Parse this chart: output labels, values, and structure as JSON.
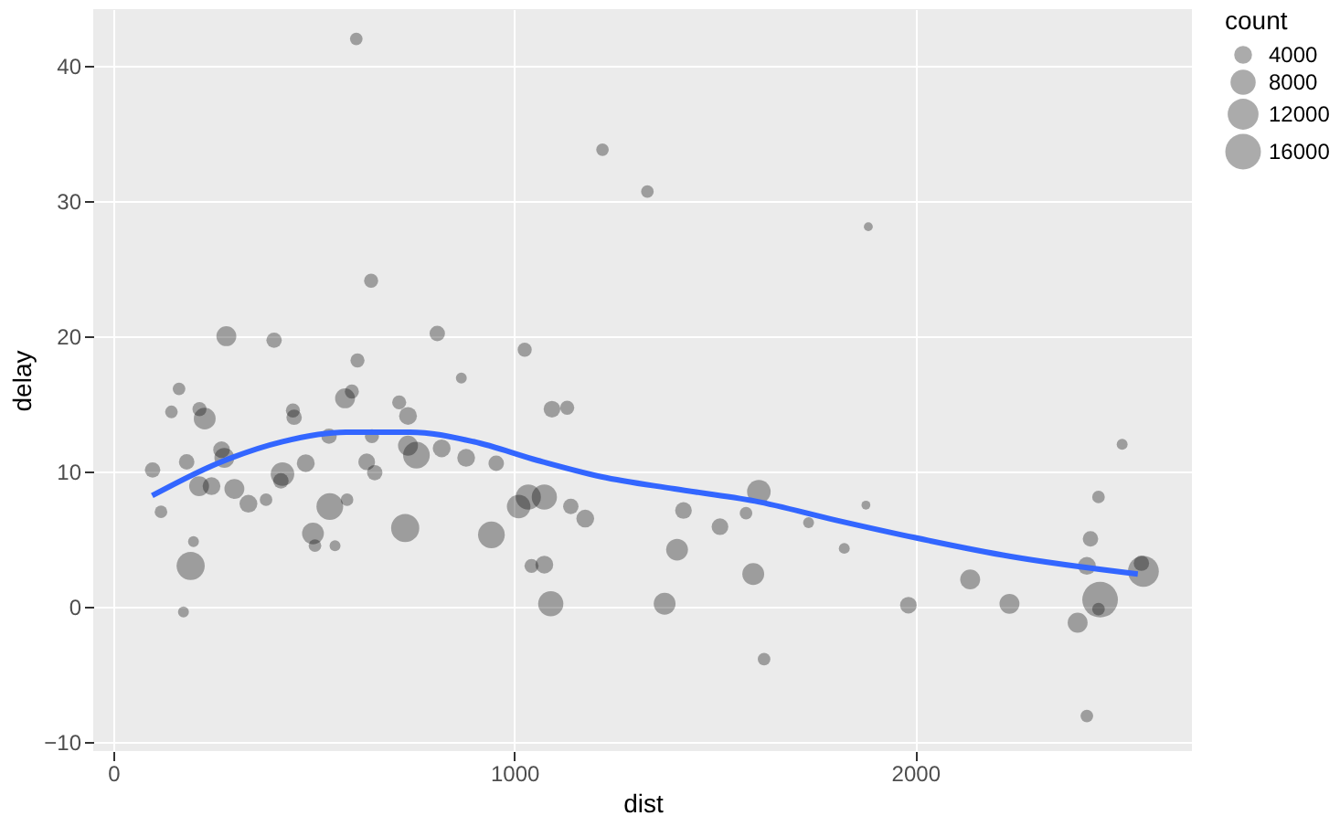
{
  "chart_data": {
    "type": "bubble",
    "xlabel": "dist",
    "ylabel": "delay",
    "legend_title": "count",
    "grid": true,
    "xlim": [
      -50,
      2690
    ],
    "ylim": [
      -10.7,
      44.2
    ],
    "xticks": [
      0,
      1000,
      2000
    ],
    "yticks": [
      -10,
      0,
      10,
      20,
      30,
      40
    ],
    "size_legend": [
      4000,
      8000,
      12000,
      16000
    ],
    "series": [
      {
        "color": "#000000",
        "x": [
          606,
          1220,
          1332,
          643,
          282,
          401,
          808,
          1026,
          609,
          1883,
          164,
          868,
          145,
          215,
          228,
          448,
          451,
          578,
          595,
          713,
          735,
          1094,
          1132,
          98,
          183,
          270,
          277,
          214,
          245,
          302,
          422,
          418,
          480,
          538,
          645,
          632,
          652,
          735,
          756,
          819,
          880,
          955,
          119,
          337,
          381,
          583,
          540,
          498,
          503,
          553,
          728,
          943,
          1011,
          1035,
          1075,
          1141,
          1177,
          200,
          193,
          175,
          1043,
          1075,
          1091,
          1375,
          2516,
          1610,
          1578,
          1422,
          1513,
          1734,
          1877,
          1823,
          1406,
          1596,
          1983,
          2137,
          2235,
          2457,
          2437,
          2428,
          2461,
          2457,
          2405,
          2569,
          2564,
          1623,
          2428
        ],
        "values": [
          42.0,
          33.8,
          30.7,
          24.1,
          20.0,
          19.7,
          20.2,
          19.0,
          18.2,
          28.1,
          16.1,
          16.9,
          14.4,
          14.6,
          13.9,
          14.5,
          14.0,
          15.4,
          15.9,
          15.1,
          14.1,
          14.6,
          14.7,
          10.1,
          10.7,
          11.6,
          11.0,
          8.9,
          8.9,
          8.7,
          9.8,
          9.3,
          10.6,
          12.6,
          12.6,
          10.7,
          9.9,
          11.9,
          11.2,
          11.7,
          11.0,
          10.6,
          7.0,
          7.6,
          7.9,
          7.9,
          7.4,
          5.4,
          4.5,
          4.5,
          5.8,
          5.3,
          7.4,
          8.1,
          8.1,
          7.4,
          6.5,
          4.8,
          3.0,
          -0.4,
          3.0,
          3.1,
          0.2,
          0.2,
          12.0,
          8.5,
          6.9,
          7.1,
          5.9,
          6.2,
          7.5,
          4.3,
          4.2,
          2.4,
          0.1,
          2.0,
          0.2,
          8.1,
          5.0,
          3.0,
          0.5,
          -0.2,
          -1.2,
          2.6,
          3.2,
          -3.9,
          -8.1
        ],
        "sizes": [
          2000,
          2000,
          2000,
          2500,
          5000,
          3000,
          3000,
          2500,
          2500,
          1000,
          2000,
          1500,
          2000,
          2500,
          6000,
          2500,
          3000,
          5000,
          2500,
          2500,
          4000,
          3500,
          2500,
          3000,
          3000,
          3500,
          5000,
          5000,
          4000,
          5000,
          7000,
          3000,
          4000,
          3000,
          2500,
          3500,
          3000,
          5000,
          9000,
          4000,
          4000,
          3000,
          2000,
          4000,
          2000,
          2000,
          9000,
          6000,
          2000,
          1500,
          10000,
          9000,
          7000,
          8000,
          8000,
          3000,
          4000,
          1500,
          10000,
          1500,
          2500,
          4000,
          8000,
          6000,
          1500,
          7000,
          2000,
          3500,
          3500,
          1500,
          1000,
          1500,
          6000,
          6000,
          3500,
          5000,
          5000,
          2000,
          3000,
          4000,
          16000,
          2000,
          5000,
          12000,
          3000,
          2000,
          2000
        ]
      },
      {
        "type": "line",
        "color": "#3366ff",
        "x": [
          97,
          261,
          422,
          580,
          740,
          898,
          1059,
          1217,
          1400,
          1600,
          1800,
          1998,
          2238,
          2555
        ],
        "values": [
          8.2,
          10.6,
          12.2,
          12.9,
          12.9,
          12.2,
          10.8,
          9.6,
          8.7,
          7.8,
          6.4,
          5.1,
          3.7,
          2.4
        ]
      }
    ]
  }
}
